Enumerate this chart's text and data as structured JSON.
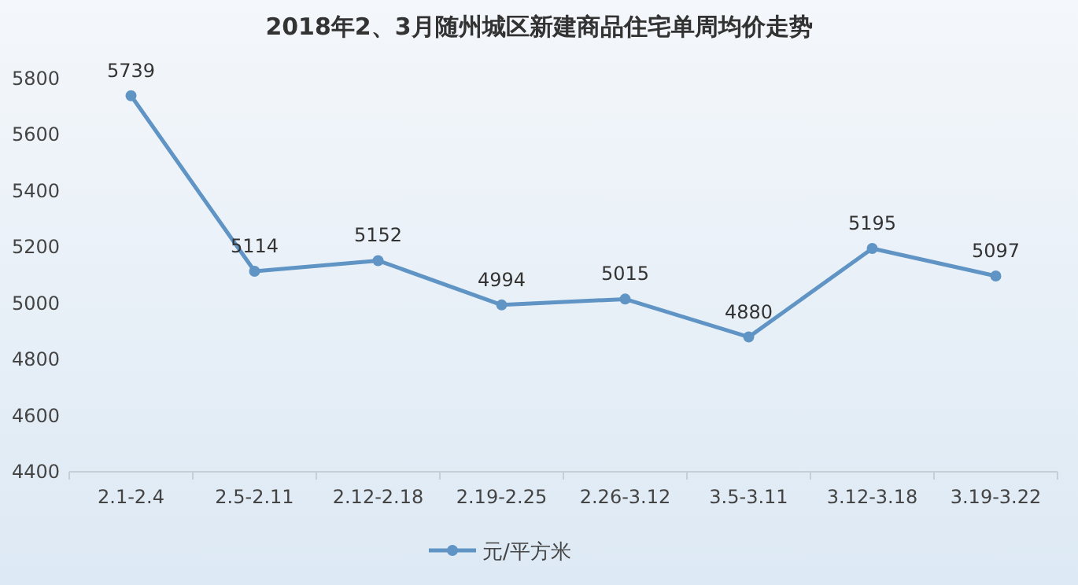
{
  "chart_data": {
    "type": "line",
    "title": "2018年2、3月随州城区新建商品住宅单周均价走势",
    "categories": [
      "2.1-2.4",
      "2.5-2.11",
      "2.12-2.18",
      "2.19-2.25",
      "2.26-3.12",
      "3.5-3.11",
      "3.12-3.18",
      "3.19-3.22"
    ],
    "series": [
      {
        "name": "元/平方米",
        "color": "#5f94c4",
        "values": [
          5739,
          5114,
          5152,
          4994,
          5015,
          4880,
          5195,
          5097
        ]
      }
    ],
    "ylim": [
      4400,
      5800
    ],
    "yticks": [
      4400,
      4600,
      4800,
      5000,
      5200,
      5400,
      5600,
      5800
    ],
    "data_labels": true,
    "legend": "bottom",
    "marker": "circle",
    "line_style": "solid",
    "grid": false
  }
}
